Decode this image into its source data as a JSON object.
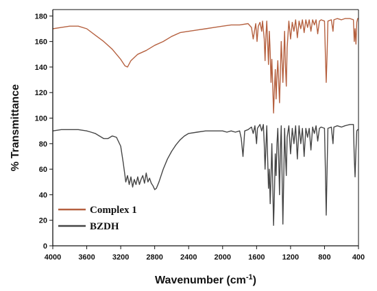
{
  "chart_data": {
    "type": "line",
    "xlabel": "Wavenumber (cm",
    "xlabel_sup": "-1",
    "xlabel_close": ")",
    "ylabel": "% Transmittance",
    "xlim": [
      4000,
      400
    ],
    "ylim": [
      0,
      185
    ],
    "x_reversed": true,
    "x_ticks": [
      4000,
      3600,
      3200,
      2800,
      2400,
      2000,
      1600,
      1200,
      800,
      400
    ],
    "y_ticks": [
      0,
      20,
      40,
      60,
      80,
      100,
      120,
      140,
      160,
      180
    ],
    "grid": false,
    "legend_position": "bottom-left",
    "series": [
      {
        "name": "Complex 1",
        "color": "#b5603f",
        "points": [
          [
            4000,
            170
          ],
          [
            3900,
            171
          ],
          [
            3800,
            172
          ],
          [
            3700,
            172
          ],
          [
            3600,
            170
          ],
          [
            3500,
            165
          ],
          [
            3400,
            160
          ],
          [
            3300,
            154
          ],
          [
            3200,
            146
          ],
          [
            3150,
            141
          ],
          [
            3120,
            140
          ],
          [
            3080,
            145
          ],
          [
            3000,
            150
          ],
          [
            2900,
            153
          ],
          [
            2800,
            157
          ],
          [
            2700,
            160
          ],
          [
            2600,
            164
          ],
          [
            2500,
            167
          ],
          [
            2400,
            168
          ],
          [
            2300,
            169
          ],
          [
            2200,
            170
          ],
          [
            2100,
            171
          ],
          [
            2000,
            172
          ],
          [
            1900,
            173
          ],
          [
            1800,
            173
          ],
          [
            1700,
            174
          ],
          [
            1660,
            171
          ],
          [
            1640,
            162
          ],
          [
            1625,
            168
          ],
          [
            1610,
            174
          ],
          [
            1595,
            160
          ],
          [
            1580,
            172
          ],
          [
            1560,
            175
          ],
          [
            1540,
            168
          ],
          [
            1530,
            176
          ],
          [
            1510,
            162
          ],
          [
            1500,
            145
          ],
          [
            1490,
            165
          ],
          [
            1480,
            176
          ],
          [
            1470,
            160
          ],
          [
            1460,
            142
          ],
          [
            1450,
            168
          ],
          [
            1440,
            152
          ],
          [
            1430,
            128
          ],
          [
            1420,
            146
          ],
          [
            1410,
            125
          ],
          [
            1400,
            104
          ],
          [
            1390,
            122
          ],
          [
            1380,
            138
          ],
          [
            1370,
            115
          ],
          [
            1360,
            133
          ],
          [
            1350,
            145
          ],
          [
            1340,
            130
          ],
          [
            1330,
            112
          ],
          [
            1320,
            135
          ],
          [
            1310,
            160
          ],
          [
            1300,
            145
          ],
          [
            1290,
            128
          ],
          [
            1280,
            148
          ],
          [
            1270,
            168
          ],
          [
            1260,
            140
          ],
          [
            1250,
            125
          ],
          [
            1240,
            155
          ],
          [
            1220,
            176
          ],
          [
            1200,
            162
          ],
          [
            1180,
            175
          ],
          [
            1160,
            168
          ],
          [
            1140,
            177
          ],
          [
            1120,
            163
          ],
          [
            1100,
            176
          ],
          [
            1080,
            170
          ],
          [
            1060,
            177
          ],
          [
            1040,
            167
          ],
          [
            1020,
            177
          ],
          [
            1000,
            171
          ],
          [
            980,
            177
          ],
          [
            960,
            168
          ],
          [
            940,
            177
          ],
          [
            920,
            173
          ],
          [
            900,
            177
          ],
          [
            880,
            166
          ],
          [
            860,
            176
          ],
          [
            840,
            177
          ],
          [
            800,
            176
          ],
          [
            790,
            150
          ],
          [
            780,
            128
          ],
          [
            770,
            150
          ],
          [
            760,
            176
          ],
          [
            720,
            177
          ],
          [
            700,
            168
          ],
          [
            690,
            177
          ],
          [
            650,
            178
          ],
          [
            600,
            177
          ],
          [
            560,
            178
          ],
          [
            500,
            178
          ],
          [
            460,
            177
          ],
          [
            450,
            160
          ],
          [
            440,
            170
          ],
          [
            430,
            158
          ],
          [
            420,
            175
          ],
          [
            410,
            178
          ],
          [
            400,
            178
          ]
        ]
      },
      {
        "name": "BZDH",
        "color": "#444444",
        "points": [
          [
            4000,
            90
          ],
          [
            3900,
            91
          ],
          [
            3800,
            91
          ],
          [
            3700,
            91
          ],
          [
            3600,
            90
          ],
          [
            3550,
            89
          ],
          [
            3500,
            88
          ],
          [
            3450,
            86
          ],
          [
            3400,
            84
          ],
          [
            3350,
            84
          ],
          [
            3300,
            86
          ],
          [
            3250,
            85
          ],
          [
            3200,
            78
          ],
          [
            3170,
            65
          ],
          [
            3150,
            55
          ],
          [
            3140,
            50
          ],
          [
            3120,
            55
          ],
          [
            3100,
            48
          ],
          [
            3080,
            54
          ],
          [
            3060,
            46
          ],
          [
            3040,
            52
          ],
          [
            3020,
            48
          ],
          [
            3000,
            54
          ],
          [
            2980,
            48
          ],
          [
            2960,
            52
          ],
          [
            2940,
            55
          ],
          [
            2920,
            49
          ],
          [
            2900,
            57
          ],
          [
            2880,
            50
          ],
          [
            2860,
            53
          ],
          [
            2840,
            49
          ],
          [
            2820,
            47
          ],
          [
            2800,
            44
          ],
          [
            2780,
            45
          ],
          [
            2750,
            50
          ],
          [
            2700,
            60
          ],
          [
            2650,
            68
          ],
          [
            2600,
            74
          ],
          [
            2550,
            79
          ],
          [
            2500,
            83
          ],
          [
            2450,
            86
          ],
          [
            2400,
            88
          ],
          [
            2300,
            89
          ],
          [
            2200,
            90
          ],
          [
            2100,
            90
          ],
          [
            2000,
            90
          ],
          [
            1950,
            89
          ],
          [
            1900,
            90
          ],
          [
            1850,
            89
          ],
          [
            1800,
            90
          ],
          [
            1780,
            84
          ],
          [
            1760,
            70
          ],
          [
            1750,
            80
          ],
          [
            1740,
            90
          ],
          [
            1700,
            91
          ],
          [
            1660,
            93
          ],
          [
            1640,
            88
          ],
          [
            1620,
            94
          ],
          [
            1600,
            80
          ],
          [
            1590,
            92
          ],
          [
            1560,
            95
          ],
          [
            1540,
            90
          ],
          [
            1520,
            95
          ],
          [
            1510,
            80
          ],
          [
            1500,
            60
          ],
          [
            1490,
            78
          ],
          [
            1480,
            94
          ],
          [
            1470,
            70
          ],
          [
            1460,
            45
          ],
          [
            1450,
            60
          ],
          [
            1440,
            33
          ],
          [
            1430,
            55
          ],
          [
            1420,
            80
          ],
          [
            1410,
            48
          ],
          [
            1400,
            16
          ],
          [
            1390,
            40
          ],
          [
            1380,
            72
          ],
          [
            1370,
            55
          ],
          [
            1360,
            80
          ],
          [
            1350,
            92
          ],
          [
            1340,
            70
          ],
          [
            1330,
            40
          ],
          [
            1320,
            75
          ],
          [
            1310,
            94
          ],
          [
            1300,
            55
          ],
          [
            1290,
            17
          ],
          [
            1280,
            55
          ],
          [
            1270,
            92
          ],
          [
            1260,
            70
          ],
          [
            1250,
            55
          ],
          [
            1240,
            85
          ],
          [
            1220,
            94
          ],
          [
            1200,
            72
          ],
          [
            1180,
            92
          ],
          [
            1160,
            80
          ],
          [
            1140,
            94
          ],
          [
            1120,
            68
          ],
          [
            1100,
            94
          ],
          [
            1080,
            80
          ],
          [
            1060,
            92
          ],
          [
            1040,
            70
          ],
          [
            1020,
            92
          ],
          [
            1000,
            85
          ],
          [
            980,
            92
          ],
          [
            960,
            75
          ],
          [
            940,
            93
          ],
          [
            920,
            88
          ],
          [
            900,
            94
          ],
          [
            880,
            82
          ],
          [
            860,
            92
          ],
          [
            840,
            93
          ],
          [
            800,
            92
          ],
          [
            790,
            60
          ],
          [
            780,
            24
          ],
          [
            770,
            60
          ],
          [
            760,
            92
          ],
          [
            720,
            93
          ],
          [
            700,
            80
          ],
          [
            690,
            93
          ],
          [
            650,
            94
          ],
          [
            600,
            93
          ],
          [
            560,
            94
          ],
          [
            500,
            95
          ],
          [
            460,
            95
          ],
          [
            450,
            70
          ],
          [
            440,
            54
          ],
          [
            430,
            75
          ],
          [
            420,
            90
          ],
          [
            410,
            91
          ],
          [
            400,
            91
          ]
        ]
      }
    ]
  }
}
